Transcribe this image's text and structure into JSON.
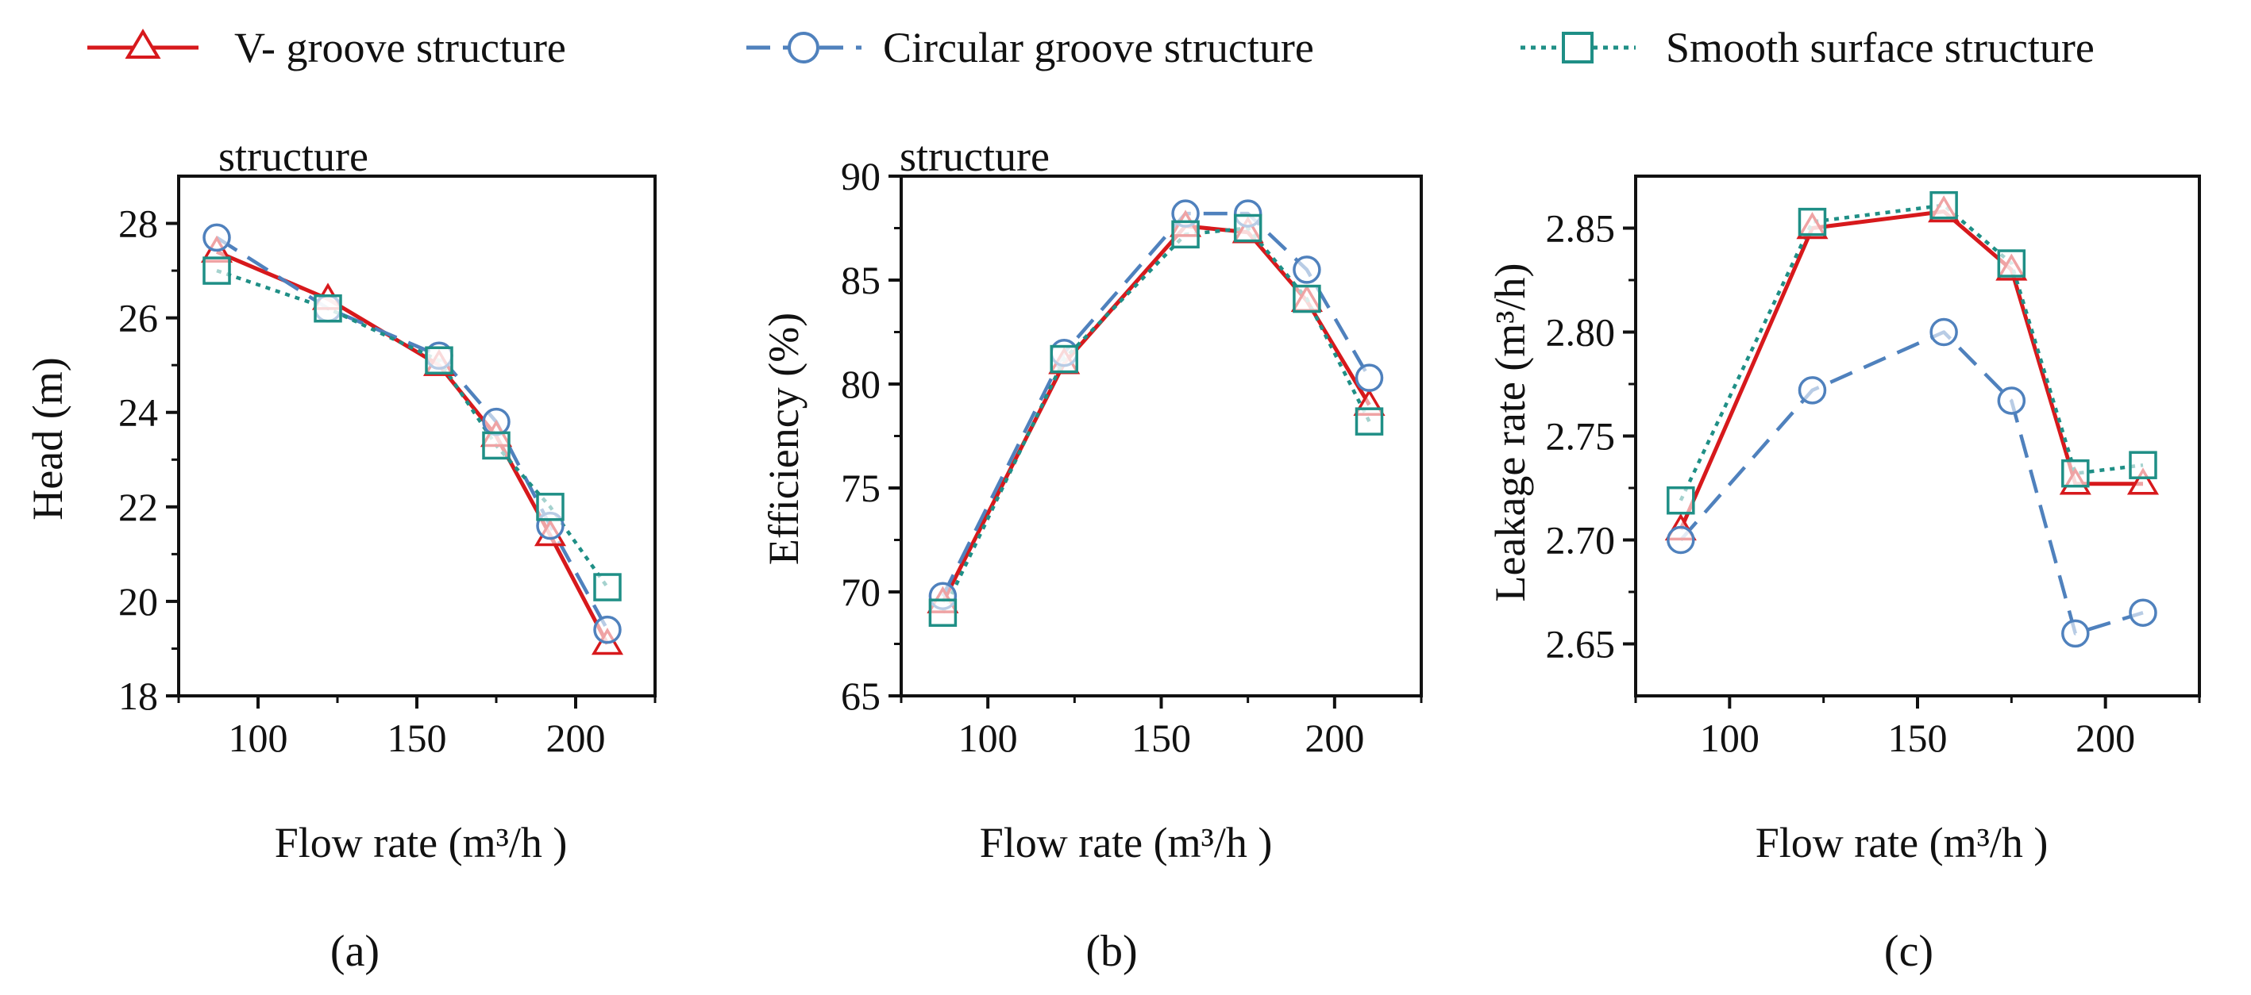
{
  "legend": [
    {
      "key": "v",
      "label": "V- groove structure",
      "color": "#d7191c",
      "marker": "triangle",
      "dash": "solid"
    },
    {
      "key": "c",
      "label": "Circular groove structure",
      "color": "#4f81bd",
      "marker": "circle",
      "dash": "dashed"
    },
    {
      "key": "s",
      "label": "Smooth surface structure",
      "color": "#1f8f86",
      "marker": "square",
      "dash": "dotted"
    }
  ],
  "colors": {
    "v": "#d7191c",
    "c": "#4f81bd",
    "s": "#1f8f86"
  },
  "chart_data": [
    {
      "id": "a",
      "type": "line",
      "panel_label": "(a)",
      "stray_title": "structure",
      "xlabel": "Flow rate (m³/h )",
      "ylabel": "Head (m)",
      "xlim": [
        75,
        225
      ],
      "ylim": [
        18,
        29
      ],
      "xticks": [
        100,
        150,
        200
      ],
      "yticks": [
        18,
        20,
        22,
        24,
        26,
        28
      ],
      "x": [
        87,
        122,
        157,
        175,
        192,
        210
      ],
      "series": [
        {
          "key": "v",
          "name": "V- groove structure",
          "values": [
            27.4,
            26.4,
            25.0,
            23.5,
            21.4,
            19.1
          ]
        },
        {
          "key": "c",
          "name": "Circular groove structure",
          "values": [
            27.7,
            26.2,
            25.2,
            23.8,
            21.6,
            19.4
          ]
        },
        {
          "key": "s",
          "name": "Smooth surface structure",
          "values": [
            27.0,
            26.2,
            25.1,
            23.3,
            22.0,
            20.3
          ]
        }
      ]
    },
    {
      "id": "b",
      "type": "line",
      "panel_label": "(b)",
      "stray_title": "structure",
      "xlabel": "Flow rate (m³/h )",
      "ylabel": "Efficiency (%)",
      "xlim": [
        75,
        225
      ],
      "ylim": [
        65,
        90
      ],
      "xticks": [
        100,
        150,
        200
      ],
      "yticks": [
        65,
        70,
        75,
        80,
        85,
        90
      ],
      "x": [
        87,
        122,
        157,
        175,
        192,
        210
      ],
      "series": [
        {
          "key": "v",
          "name": "V- groove structure",
          "values": [
            69.5,
            81.0,
            87.6,
            87.3,
            84.0,
            79.0
          ]
        },
        {
          "key": "c",
          "name": "Circular groove structure",
          "values": [
            69.8,
            81.5,
            88.2,
            88.2,
            85.5,
            80.3
          ]
        },
        {
          "key": "s",
          "name": "Smooth surface structure",
          "values": [
            69.0,
            81.2,
            87.2,
            87.5,
            84.1,
            78.2
          ]
        }
      ]
    },
    {
      "id": "c",
      "type": "line",
      "panel_label": "(c)",
      "xlabel": "Flow rate (m³/h )",
      "ylabel": "Leakage rate (m³/h)",
      "xlim": [
        75,
        225
      ],
      "ylim": [
        2.625,
        2.875
      ],
      "xticks": [
        100,
        150,
        200
      ],
      "yticks": [
        2.65,
        2.7,
        2.75,
        2.8,
        2.85
      ],
      "ytick_labels": [
        "2.65",
        "2.70",
        "2.75",
        "2.80",
        "2.85"
      ],
      "x": [
        87,
        122,
        157,
        175,
        192,
        210
      ],
      "series": [
        {
          "key": "v",
          "name": "V- groove structure",
          "values": [
            2.705,
            2.85,
            2.858,
            2.83,
            2.727,
            2.727
          ]
        },
        {
          "key": "c",
          "name": "Circular groove structure",
          "values": [
            2.7,
            2.772,
            2.8,
            2.767,
            2.655,
            2.665
          ]
        },
        {
          "key": "s",
          "name": "Smooth surface structure",
          "values": [
            2.719,
            2.853,
            2.861,
            2.833,
            2.732,
            2.736
          ]
        }
      ]
    }
  ]
}
